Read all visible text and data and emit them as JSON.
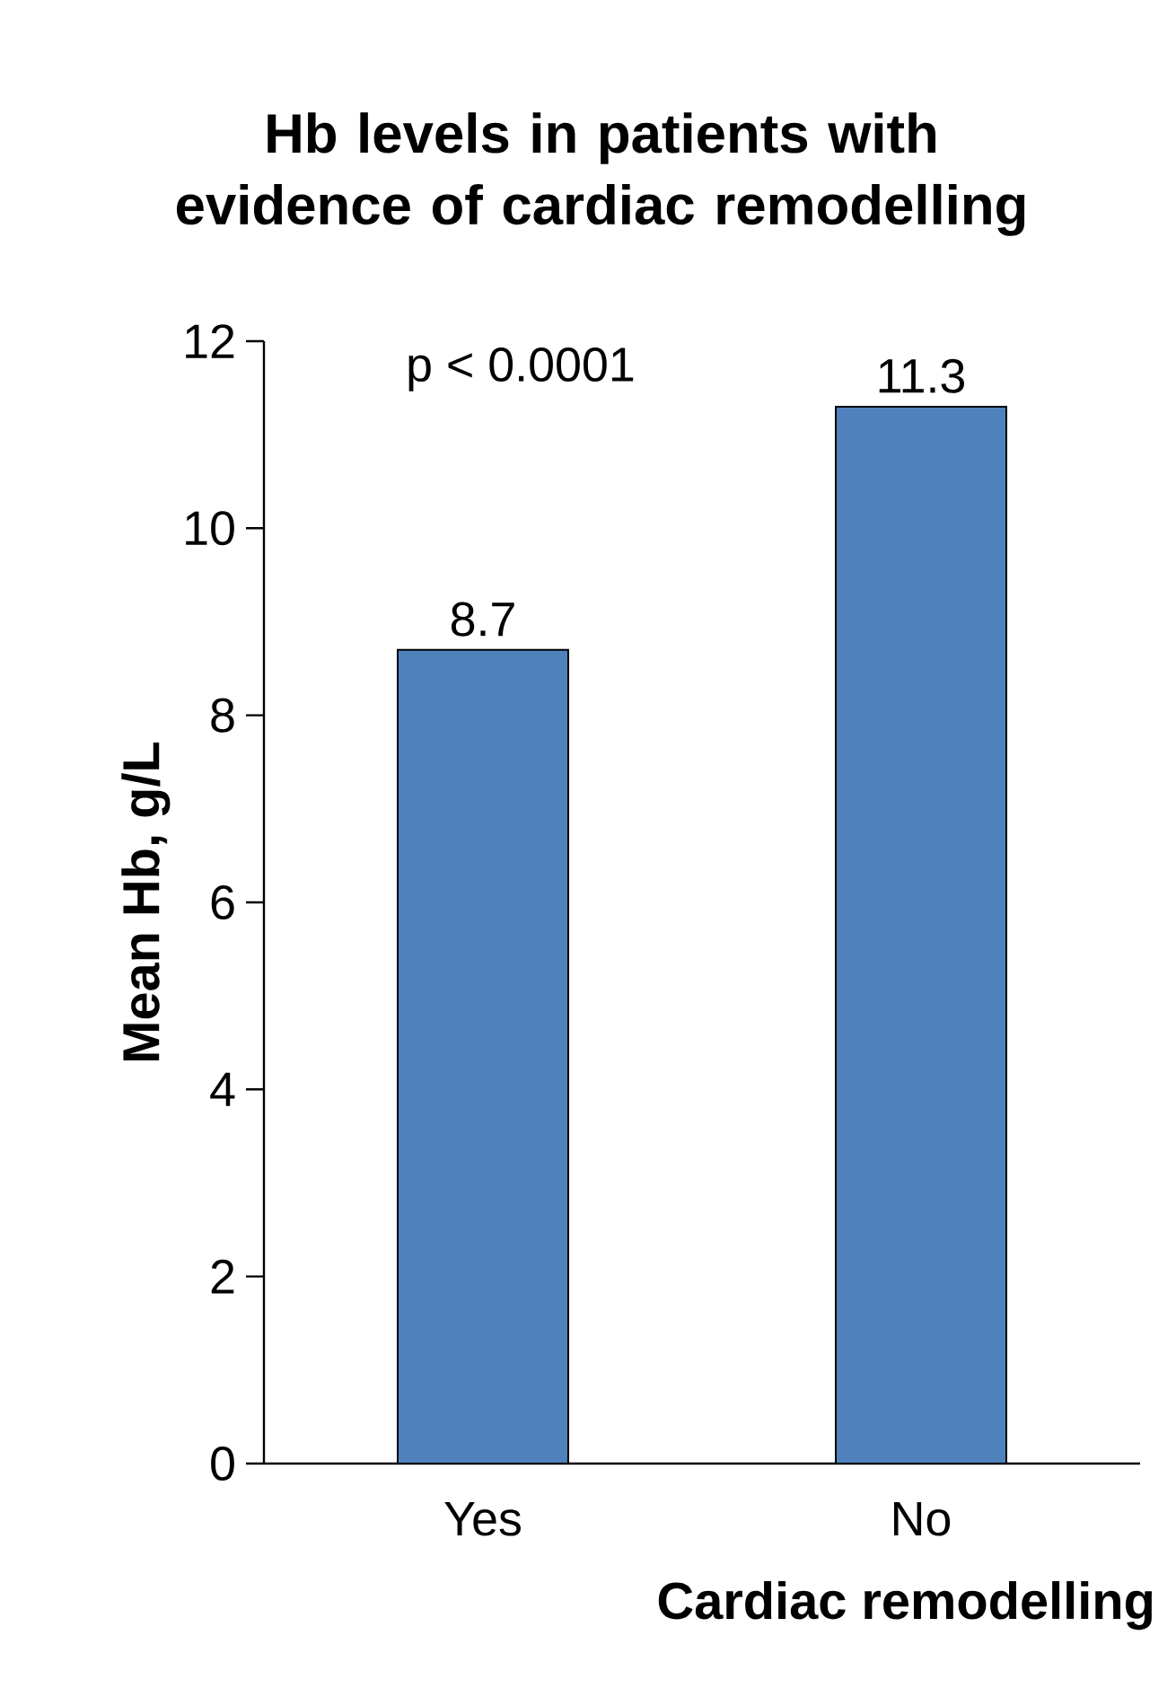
{
  "chart_data": {
    "type": "bar",
    "title": "Hb levels in patients with evidence of cardiac remodelling",
    "xlabel": "Cardiac remodelling",
    "ylabel": "Mean Hb, g/L",
    "categories": [
      "Yes",
      "No"
    ],
    "values": [
      8.7,
      11.3
    ],
    "color": "#4f81bd",
    "ylim": [
      0,
      12
    ],
    "yticks": [
      0,
      2,
      4,
      6,
      8,
      10,
      12
    ],
    "data_labels": true,
    "grid": false,
    "annotations": [
      "p < 0.0001"
    ]
  }
}
